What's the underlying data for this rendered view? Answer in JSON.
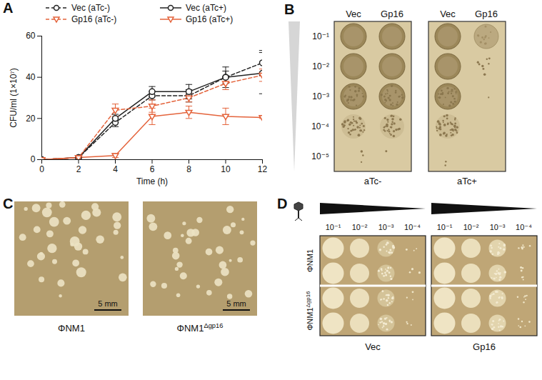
{
  "chart_data": {
    "type": "line",
    "panel_label": "A",
    "x_label": "Time (h)",
    "y_label": "CFU/ml (1×10⁷)",
    "x": [
      0,
      2,
      4,
      6,
      8,
      10,
      12
    ],
    "xlim": [
      0,
      12
    ],
    "xticks": [
      0,
      2,
      4,
      6,
      8,
      10,
      12
    ],
    "ylim": [
      0,
      60
    ],
    "yticks": [
      0,
      20,
      40,
      60
    ],
    "legend": "top",
    "grid": false,
    "series": [
      {
        "name": "Vec (aTc-)",
        "color": "#222222",
        "line_style": "dashed",
        "marker": "circle",
        "values": [
          0,
          1,
          18,
          31,
          31,
          40,
          47
        ],
        "errors": [
          0,
          0,
          2,
          2,
          3,
          3,
          6
        ]
      },
      {
        "name": "Vec (aTc+)",
        "color": "#222222",
        "line_style": "solid",
        "marker": "circle",
        "values": [
          0,
          1,
          20,
          33,
          33,
          40,
          42
        ],
        "errors": [
          0,
          0,
          2,
          2.5,
          3.5,
          5,
          10
        ]
      },
      {
        "name": "Gp16 (aTc-)",
        "color": "#e4633b",
        "line_style": "dashed",
        "marker": "triangle-down",
        "values": [
          0,
          1,
          24,
          26,
          30,
          37,
          41
        ],
        "errors": [
          0,
          0,
          3,
          3,
          2,
          3,
          3
        ]
      },
      {
        "name": "Gp16 (aTc+)",
        "color": "#e4633b",
        "line_style": "solid",
        "marker": "triangle-down",
        "values": [
          0,
          1,
          2,
          21,
          23,
          21,
          20.5
        ],
        "errors": [
          0,
          0,
          1,
          4,
          3,
          4,
          0.5
        ]
      }
    ]
  },
  "panel_b": {
    "label": "B",
    "columns": [
      "Vec",
      "Gp16"
    ],
    "dilutions": [
      "10⁻¹",
      "10⁻²",
      "10⁻³",
      "10⁻⁴",
      "10⁻⁵"
    ],
    "conditions": [
      "aTc-",
      "aTc+"
    ]
  },
  "panel_c": {
    "label": "C",
    "images": [
      {
        "name": "ΦNM1",
        "sup": ""
      },
      {
        "name": "ΦNM1",
        "sup": "Δgp16"
      }
    ],
    "scale_bar": "5 mm"
  },
  "panel_d": {
    "label": "D",
    "dilutions": [
      "10⁻¹",
      "10⁻²",
      "10⁻³",
      "10⁻⁴"
    ],
    "phages": [
      {
        "name": "ΦNM1",
        "sup": ""
      },
      {
        "name": "ΦNM1",
        "sup": "Δgp16"
      }
    ],
    "hosts": [
      "Vec",
      "Gp16"
    ]
  }
}
